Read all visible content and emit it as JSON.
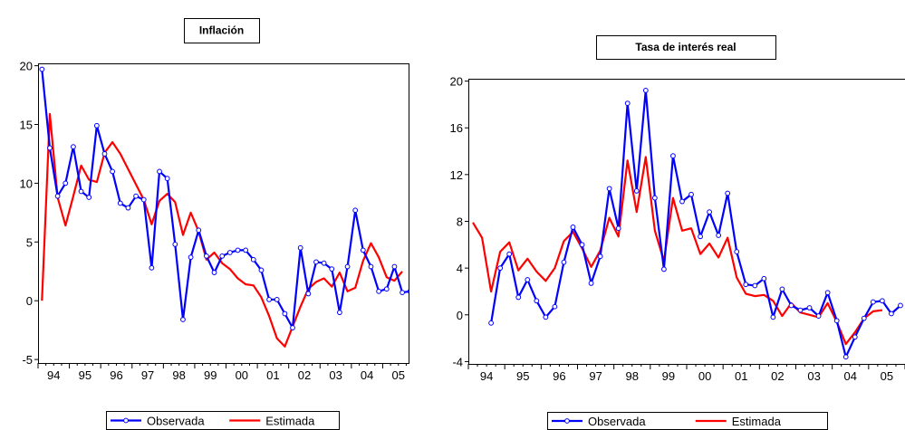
{
  "chart_data": [
    {
      "type": "line",
      "title": "Inflación",
      "xlabel": "",
      "ylabel": "",
      "x_tick_labels": [
        "94",
        "95",
        "96",
        "97",
        "98",
        "99",
        "00",
        "01",
        "02",
        "03",
        "04",
        "05"
      ],
      "y_ticks": [
        -5,
        0,
        5,
        10,
        15,
        20
      ],
      "ylim": [
        -5.3,
        20.2
      ],
      "xlim": [
        0,
        47.3
      ],
      "grid": false,
      "legend": "bottom",
      "series": [
        {
          "name": "Observada",
          "color": "#0000ff",
          "markers": true,
          "values": [
            19.7,
            13.0,
            8.9,
            10.0,
            13.1,
            9.3,
            8.8,
            14.9,
            12.5,
            11.0,
            8.3,
            7.9,
            8.9,
            8.6,
            2.8,
            11.0,
            10.4,
            4.8,
            -1.6,
            3.7,
            6.0,
            3.8,
            2.4,
            3.8,
            4.1,
            4.3,
            4.3,
            3.5,
            2.6,
            0.1,
            0.1,
            -1.1,
            -2.3,
            4.5,
            0.6,
            3.3,
            3.2,
            2.7,
            -1.0,
            2.9,
            7.7,
            4.3,
            2.9,
            0.8,
            1.0,
            2.9,
            0.7,
            0.8
          ]
        },
        {
          "name": "Estimada",
          "color": "#ff0000",
          "markers": false,
          "values": [
            0.0,
            15.9,
            8.8,
            6.4,
            8.9,
            11.5,
            10.3,
            10.1,
            12.6,
            13.5,
            12.5,
            11.2,
            9.9,
            8.6,
            6.5,
            8.5,
            9.1,
            8.4,
            5.6,
            7.5,
            5.9,
            3.5,
            4.1,
            3.2,
            2.7,
            1.9,
            1.4,
            1.3,
            0.3,
            -1.3,
            -3.2,
            -3.9,
            -2.2,
            -0.5,
            1.0,
            1.6,
            1.9,
            1.2,
            2.4,
            0.8,
            1.1,
            3.4,
            4.9,
            3.7,
            2.0,
            1.7,
            2.5
          ]
        }
      ]
    },
    {
      "type": "line",
      "title": "Tasa de interés real",
      "xlabel": "",
      "ylabel": "",
      "x_tick_labels": [
        "94",
        "95",
        "96",
        "97",
        "98",
        "99",
        "00",
        "01",
        "02",
        "03",
        "04",
        "05"
      ],
      "y_ticks": [
        -4,
        0,
        4,
        8,
        12,
        16,
        20
      ],
      "ylim": [
        -4.2,
        20.2
      ],
      "xlim": [
        0,
        48
      ],
      "grid": false,
      "legend": "bottom",
      "series": [
        {
          "name": "Observada",
          "color": "#0000ff",
          "markers": true,
          "values": [
            null,
            null,
            -0.7,
            4.0,
            5.2,
            1.5,
            3.0,
            1.2,
            -0.2,
            0.7,
            4.5,
            7.5,
            6.0,
            2.7,
            5.0,
            10.8,
            7.4,
            18.1,
            10.6,
            19.2,
            10.0,
            3.9,
            13.6,
            9.7,
            10.3,
            6.7,
            8.8,
            6.8,
            10.4,
            5.4,
            2.6,
            2.5,
            3.1,
            -0.2,
            2.2,
            0.8,
            0.4,
            0.6,
            -0.1,
            1.9,
            -0.5,
            -3.6,
            -1.9,
            -0.3,
            1.1,
            1.2,
            0.1,
            0.8
          ]
        },
        {
          "name": "Estimada",
          "color": "#ff0000",
          "markers": false,
          "values": [
            7.9,
            6.6,
            2.0,
            5.4,
            6.2,
            3.8,
            4.8,
            3.7,
            2.9,
            4.0,
            6.3,
            7.1,
            5.7,
            4.1,
            5.5,
            8.3,
            6.7,
            13.2,
            8.8,
            13.5,
            7.2,
            4.6,
            10.0,
            7.2,
            7.4,
            5.2,
            6.1,
            4.9,
            6.6,
            3.2,
            1.8,
            1.6,
            1.7,
            1.2,
            -0.1,
            1.0,
            0.2,
            0.0,
            -0.2,
            1.0,
            -0.6,
            -2.5,
            -1.5,
            -0.3,
            0.3,
            0.4
          ]
        }
      ]
    }
  ]
}
